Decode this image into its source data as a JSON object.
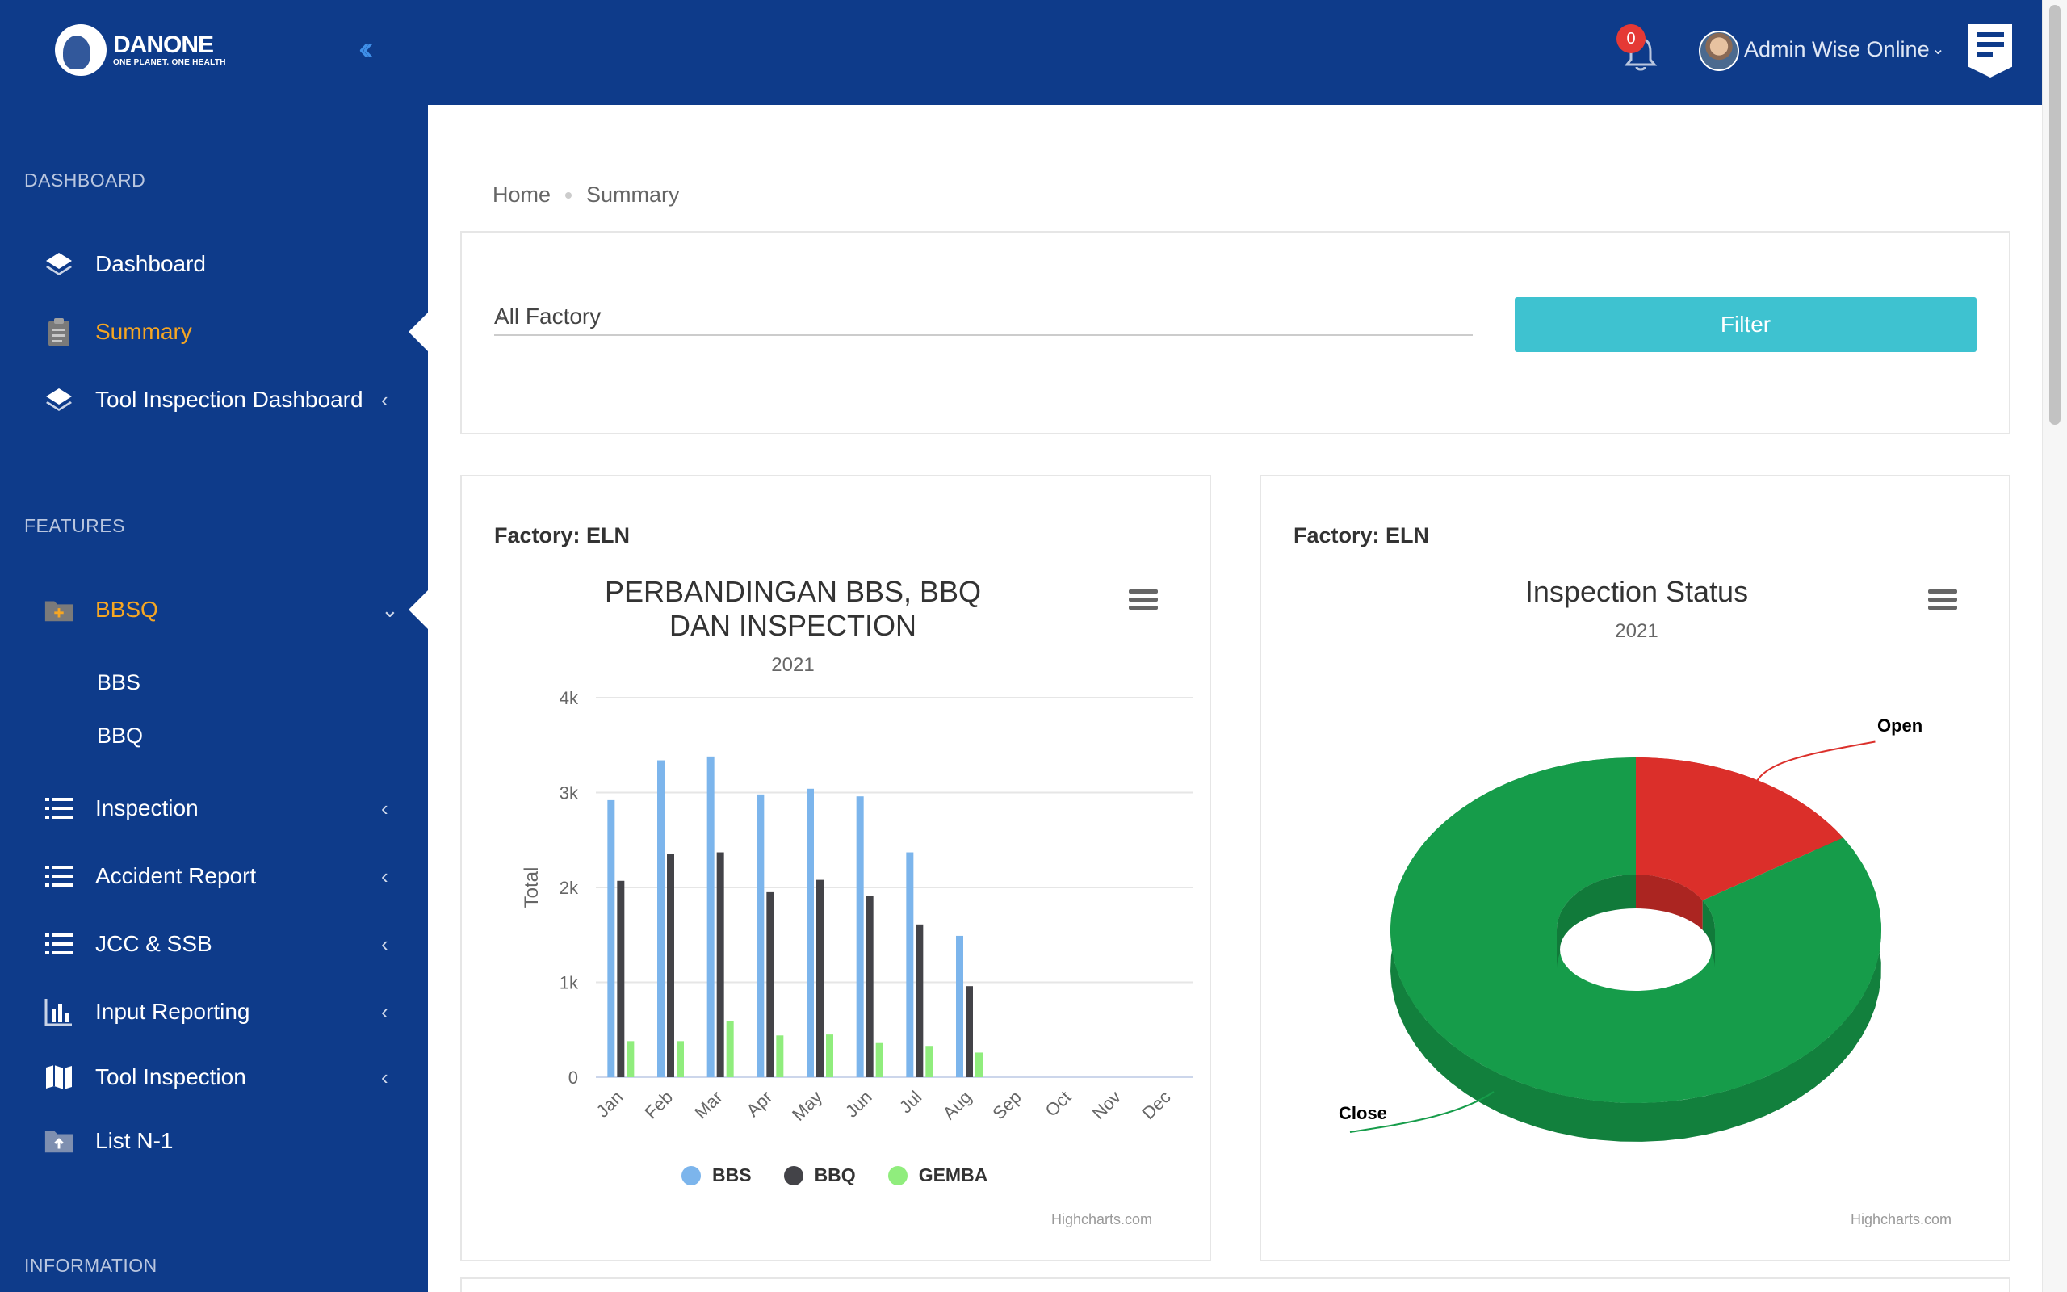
{
  "brand": {
    "name": "DANONE",
    "tagline": "ONE PLANET. ONE HEALTH"
  },
  "header": {
    "notification_count": "0",
    "user_name": "Admin Wise Online"
  },
  "sidebar": {
    "sections": {
      "dashboard": "DASHBOARD",
      "features": "FEATURES",
      "information": "INFORMATION"
    },
    "items": {
      "dashboard": "Dashboard",
      "summary": "Summary",
      "tool_inspection_dashboard": "Tool Inspection Dashboard",
      "bbsq": "BBSQ",
      "bbs": "BBS",
      "bbq": "BBQ",
      "inspection": "Inspection",
      "accident_report": "Accident Report",
      "jcc_ssb": "JCC & SSB",
      "input_reporting": "Input Reporting",
      "tool_inspection": "Tool Inspection",
      "list_n1": "List N-1"
    },
    "active_color": "#f5a623"
  },
  "breadcrumb": {
    "home": "Home",
    "current": "Summary"
  },
  "filter": {
    "factory_value": "All Factory",
    "button_label": "Filter"
  },
  "charts": {
    "bar_card": {
      "factory_label": "Factory: ELN",
      "title": "PERBANDINGAN BBS, BBQ DAN INSPECTION",
      "subtitle": "2021",
      "credits": "Highcharts.com"
    },
    "pie_card": {
      "factory_label": "Factory: ELN",
      "title": "Inspection Status",
      "subtitle": "2021",
      "credits": "Highcharts.com"
    }
  },
  "chart_data": [
    {
      "type": "bar",
      "title": "PERBANDINGAN BBS, BBQ DAN INSPECTION",
      "subtitle": "2021",
      "ylabel": "Total",
      "ylim": [
        0,
        4000
      ],
      "yticks": [
        "0",
        "1k",
        "2k",
        "3k",
        "4k"
      ],
      "grid": true,
      "legend_position": "bottom",
      "categories": [
        "Jan",
        "Feb",
        "Mar",
        "Apr",
        "May",
        "Jun",
        "Jul",
        "Aug",
        "Sep",
        "Oct",
        "Nov",
        "Dec"
      ],
      "series": [
        {
          "name": "BBS",
          "color": "#7cb5ec",
          "values": [
            2920,
            3340,
            3380,
            2980,
            3040,
            2960,
            2370,
            1490,
            0,
            0,
            0,
            0
          ]
        },
        {
          "name": "BBQ",
          "color": "#434348",
          "values": [
            2070,
            2350,
            2370,
            1950,
            2080,
            1910,
            1610,
            960,
            0,
            0,
            0,
            0
          ]
        },
        {
          "name": "GEMBA",
          "color": "#90ed7d",
          "values": [
            380,
            380,
            590,
            440,
            450,
            360,
            330,
            260,
            0,
            0,
            0,
            0
          ]
        }
      ]
    },
    {
      "type": "pie",
      "title": "Inspection Status",
      "subtitle": "2021",
      "variant": "3d-donut",
      "slices": [
        {
          "name": "Open",
          "value": 16,
          "color": "#db2f2a"
        },
        {
          "name": "Close",
          "value": 84,
          "color": "#169c4a"
        }
      ]
    }
  ]
}
